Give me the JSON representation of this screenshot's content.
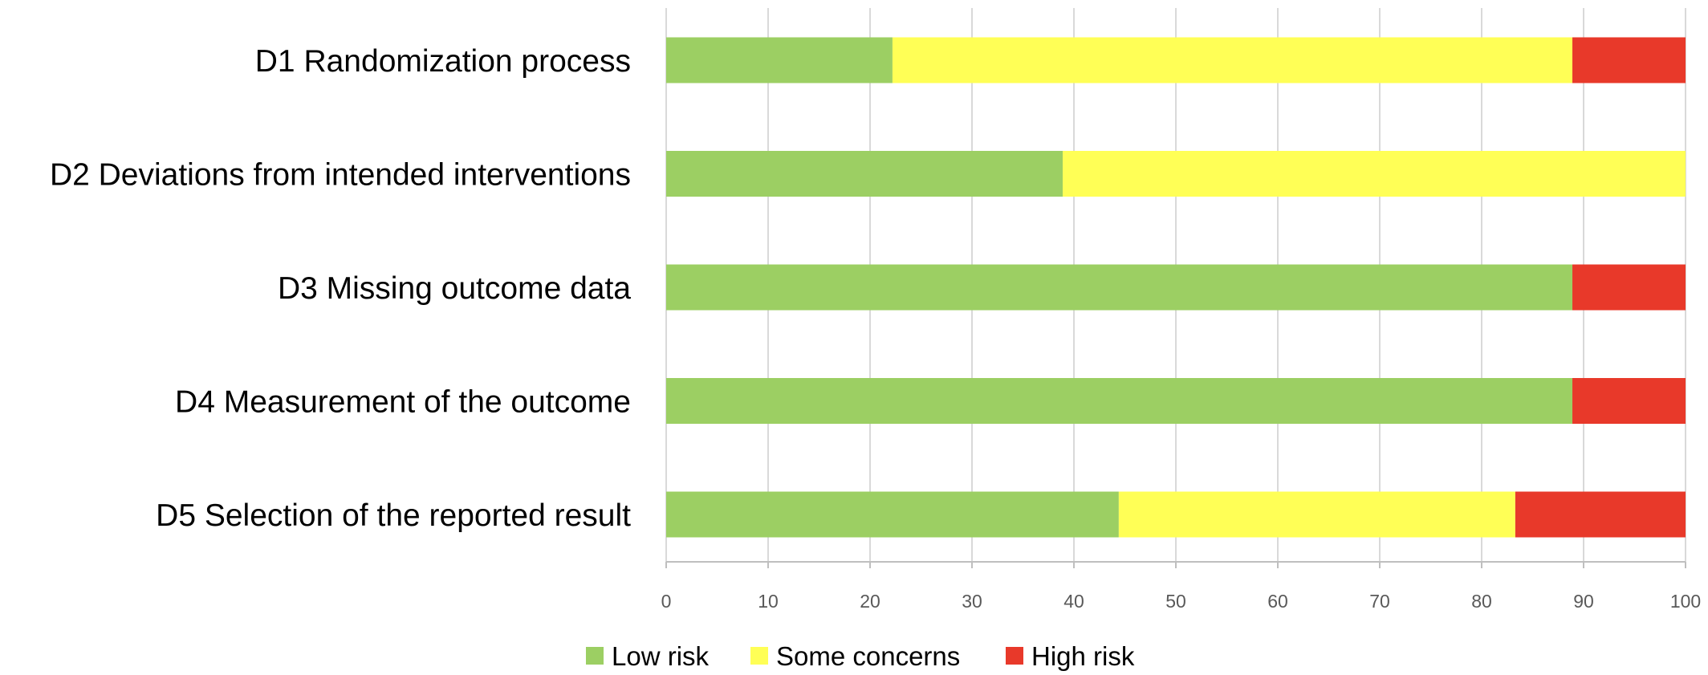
{
  "chart_data": {
    "type": "bar",
    "orientation": "horizontal",
    "stacked": true,
    "categories": [
      "D1 Randomization process",
      "D2 Deviations from intended interventions",
      "D3 Missing outcome data",
      "D4 Measurement of the outcome",
      "D5 Selection of the reported result"
    ],
    "series": [
      {
        "name": "Low risk",
        "color": "#9ccf63",
        "values": [
          22.2,
          38.9,
          88.9,
          88.9,
          44.4
        ]
      },
      {
        "name": "Some concerns",
        "color": "#ffff56",
        "values": [
          66.7,
          61.1,
          0,
          0,
          38.9
        ]
      },
      {
        "name": "High risk",
        "color": "#e8392a",
        "values": [
          11.1,
          0,
          11.1,
          11.1,
          16.7
        ]
      }
    ],
    "x_ticks": [
      "0",
      "10",
      "20",
      "30",
      "40",
      "50",
      "60",
      "70",
      "80",
      "90",
      "100"
    ],
    "xlim": [
      0,
      100
    ],
    "grid": "vertical",
    "legend_position": "bottom",
    "gridline_color": "#d9d9d9",
    "axis_color": "#bfbfbf"
  }
}
